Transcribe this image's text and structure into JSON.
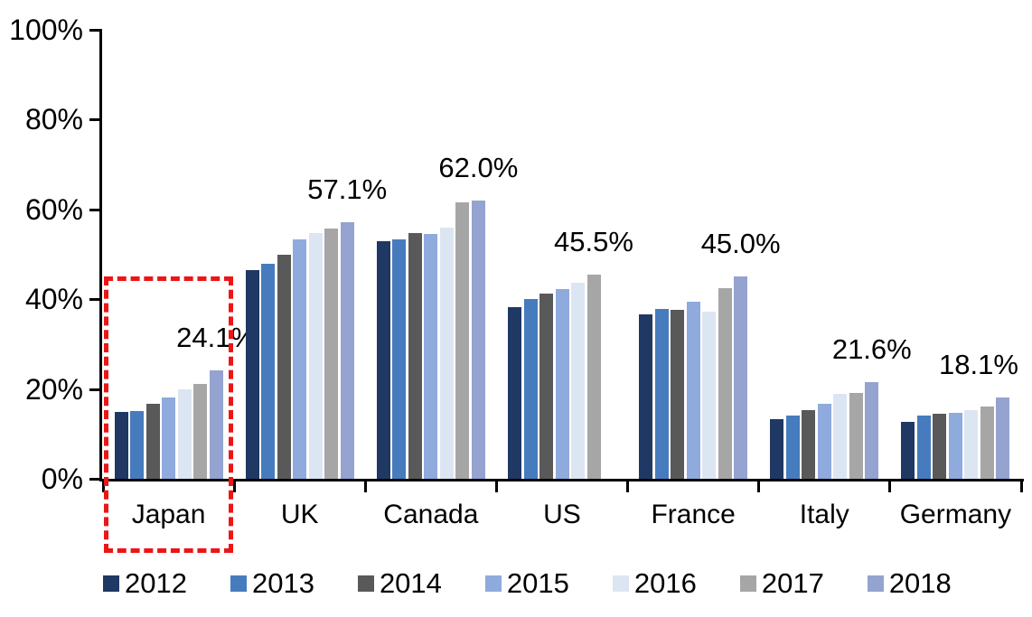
{
  "chart_data": {
    "type": "bar",
    "title": "",
    "xlabel": "",
    "ylabel": "",
    "ylim": [
      0,
      100
    ],
    "grid": false,
    "legend_position": "bottom",
    "y_axis": {
      "tick_labels": [
        "0%",
        "20%",
        "40%",
        "60%",
        "80%",
        "100%"
      ],
      "tick_step": 20
    },
    "categories": [
      "Japan",
      "UK",
      "Canada",
      "US",
      "France",
      "Italy",
      "Germany"
    ],
    "series": [
      {
        "name": "2012",
        "color": "#1F3864",
        "values": [
          14.9,
          46.5,
          52.9,
          38.2,
          36.6,
          13.3,
          12.6
        ]
      },
      {
        "name": "2013",
        "color": "#467CBD",
        "values": [
          15.1,
          47.9,
          53.4,
          40.0,
          37.8,
          14.1,
          14.0
        ]
      },
      {
        "name": "2014",
        "color": "#595959",
        "values": [
          16.8,
          49.9,
          54.8,
          41.2,
          37.7,
          15.3,
          14.4
        ]
      },
      {
        "name": "2015",
        "color": "#8FAADC",
        "values": [
          18.1,
          53.3,
          54.6,
          42.2,
          39.4,
          16.8,
          14.7
        ]
      },
      {
        "name": "2016",
        "color": "#DCE6F2",
        "values": [
          20.0,
          54.8,
          56.0,
          43.6,
          37.3,
          19.0,
          15.3
        ]
      },
      {
        "name": "2017",
        "color": "#A6A6A6",
        "values": [
          21.2,
          55.8,
          61.6,
          45.5,
          42.4,
          19.2,
          16.0
        ]
      },
      {
        "name": "2018",
        "color": "#94A3D0",
        "values": [
          24.1,
          57.1,
          62.0,
          null,
          45.0,
          21.6,
          18.1
        ]
      }
    ],
    "data_labels": [
      {
        "category": "Japan",
        "text": "24.1%"
      },
      {
        "category": "UK",
        "text": "57.1%"
      },
      {
        "category": "Canada",
        "text": "62.0%"
      },
      {
        "category": "US",
        "text": "45.5%"
      },
      {
        "category": "France",
        "text": "45.0%"
      },
      {
        "category": "Italy",
        "text": "21.6%"
      },
      {
        "category": "Germany",
        "text": "18.1%"
      }
    ],
    "annotations": {
      "highlight_box": {
        "target_category": "Japan",
        "color": "#ED1515",
        "style": "dashed"
      }
    },
    "colors": {
      "axis": "#000000",
      "text": "#000000",
      "background": "#FFFFFF",
      "highlight": "#ED1515"
    }
  }
}
